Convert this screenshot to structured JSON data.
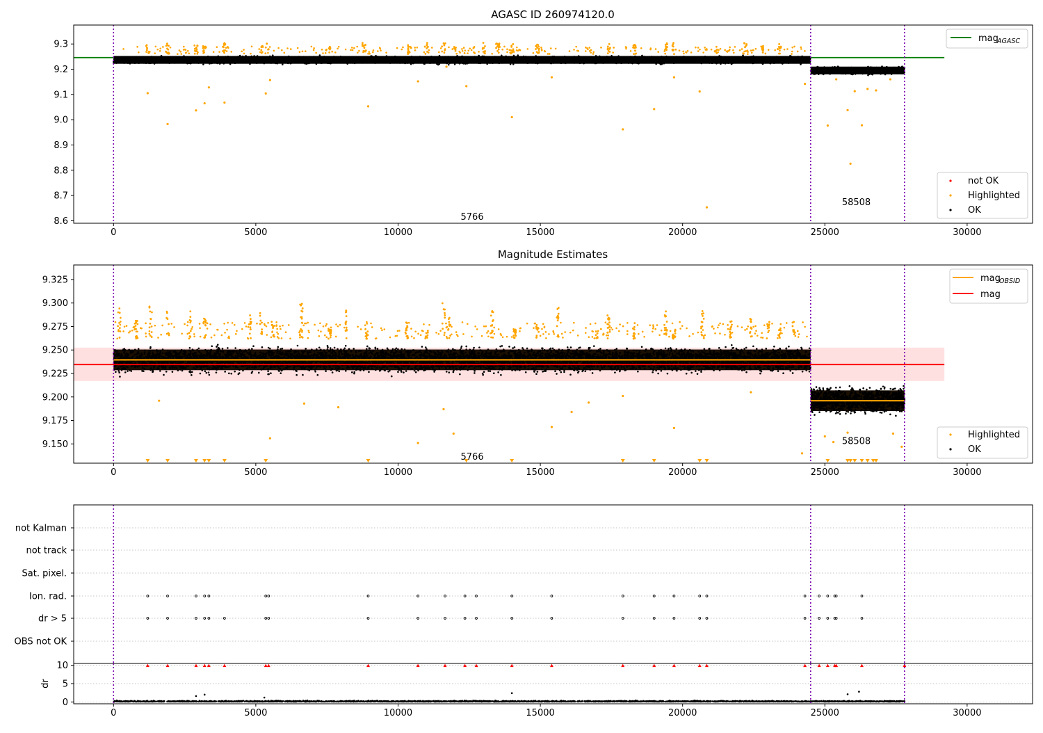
{
  "chart_data": [
    {
      "type": "scatter",
      "title": "AGASC ID 260974120.0",
      "xlim": [
        -1400,
        32300
      ],
      "ylim": [
        8.59,
        9.375
      ],
      "yticks": [
        "9.3",
        "9.2",
        "9.1",
        "9.0",
        "8.9",
        "8.8",
        "8.7",
        "8.6"
      ],
      "xticks": [
        "0",
        "5000",
        "10000",
        "15000",
        "20000",
        "25000",
        "30000"
      ],
      "obsid_boundaries": [
        0,
        24500,
        27800
      ],
      "obsid_labels": [
        {
          "text": "5766",
          "x": 12200,
          "y": 8.615
        },
        {
          "text": "58508",
          "x": 25600,
          "y": 8.672
        }
      ],
      "mag_agasc": {
        "value": 9.246,
        "x_range": [
          -1400,
          29200
        ]
      },
      "ok_bands": [
        {
          "x": [
            0,
            24500
          ],
          "center": 9.237,
          "spread": 0.022
        },
        {
          "x": [
            24500,
            27800
          ],
          "center": 9.195,
          "spread": 0.022
        }
      ],
      "highlighted_points": [
        [
          1200,
          9.105
        ],
        [
          1900,
          8.983
        ],
        [
          2900,
          9.037
        ],
        [
          3200,
          9.065
        ],
        [
          3350,
          9.128
        ],
        [
          3900,
          9.068
        ],
        [
          5350,
          9.104
        ],
        [
          5500,
          9.157
        ],
        [
          8950,
          9.053
        ],
        [
          10700,
          9.152
        ],
        [
          11700,
          9.21
        ],
        [
          12400,
          9.133
        ],
        [
          14000,
          9.01
        ],
        [
          15400,
          9.168
        ],
        [
          17900,
          8.962
        ],
        [
          19000,
          9.042
        ],
        [
          19700,
          9.168
        ],
        [
          20600,
          9.112
        ],
        [
          20850,
          8.653
        ],
        [
          24300,
          9.142
        ],
        [
          25100,
          8.977
        ],
        [
          25400,
          9.16
        ],
        [
          25800,
          9.038
        ],
        [
          25900,
          8.826
        ],
        [
          26050,
          9.113
        ],
        [
          26300,
          8.978
        ],
        [
          26500,
          9.122
        ],
        [
          26800,
          9.116
        ],
        [
          27300,
          9.16
        ]
      ],
      "highlighted_spikes": [
        1200,
        1900,
        2900,
        3200,
        3900,
        5200,
        5400,
        7600,
        8800,
        10400,
        11000,
        11600,
        12000,
        13000,
        13500,
        14000,
        14900,
        17400,
        18300,
        19400,
        19700,
        21200,
        22200,
        22800,
        23400
      ],
      "legend": {
        "lines": [
          {
            "label": "mag",
            "subscript": "AGASC",
            "color": "#008000"
          }
        ],
        "markers": [
          {
            "label": "not OK",
            "color": "#ff0000"
          },
          {
            "label": "Highlighted",
            "color": "#ffa500"
          },
          {
            "label": "OK",
            "color": "#000000"
          }
        ]
      }
    },
    {
      "type": "scatter",
      "title": "Magnitude Estimates",
      "xlim": [
        -1400,
        32300
      ],
      "ylim": [
        9.1295,
        9.3405
      ],
      "yticks": [
        "9.325",
        "9.300",
        "9.275",
        "9.250",
        "9.225",
        "9.200",
        "9.175",
        "9.150"
      ],
      "xticks": [
        "0",
        "5000",
        "10000",
        "15000",
        "20000",
        "25000",
        "30000"
      ],
      "obsid_boundaries": [
        0,
        24500,
        27800
      ],
      "obsid_labels": [
        {
          "text": "5766",
          "x": 12200,
          "y": 9.136
        },
        {
          "text": "58508",
          "x": 25600,
          "y": 9.153
        }
      ],
      "mag": {
        "value": 9.2345,
        "x_range": [
          -1400,
          29200
        ],
        "band": [
          9.217,
          9.2525
        ],
        "color": "#ff0000"
      },
      "mag_obsid": [
        {
          "x": [
            0,
            24500
          ],
          "value": 9.2395
        },
        {
          "x": [
            24500,
            27800
          ],
          "value": 9.196
        }
      ],
      "ok_bands": [
        {
          "x": [
            0,
            24500
          ],
          "center": 9.2395,
          "spread": 0.02
        },
        {
          "x": [
            24500,
            27800
          ],
          "center": 9.196,
          "spread": 0.02
        }
      ],
      "highlighted_points": [
        [
          1600,
          9.196
        ],
        [
          5500,
          9.156
        ],
        [
          6700,
          9.193
        ],
        [
          7900,
          9.189
        ],
        [
          10700,
          9.151
        ],
        [
          11600,
          9.187
        ],
        [
          11950,
          9.161
        ],
        [
          15400,
          9.168
        ],
        [
          16100,
          9.184
        ],
        [
          16700,
          9.194
        ],
        [
          17900,
          9.201
        ],
        [
          19700,
          9.167
        ],
        [
          22400,
          9.205
        ],
        [
          24200,
          9.14
        ],
        [
          25000,
          9.158
        ],
        [
          25300,
          9.152
        ],
        [
          25800,
          9.162
        ],
        [
          27400,
          9.161
        ],
        [
          27700,
          9.147
        ]
      ],
      "highlighted_spikes": [
        200,
        800,
        1300,
        1900,
        2700,
        3200,
        4800,
        5200,
        5600,
        6600,
        7600,
        8200,
        8900,
        10300,
        11000,
        11600,
        11800,
        13300,
        14100,
        14900,
        15600,
        17000,
        17400,
        18300,
        19400,
        19700,
        20700,
        21700,
        22400,
        23000,
        23400,
        23900
      ],
      "offscale_triangles": [
        1200,
        1900,
        2900,
        3200,
        3350,
        3900,
        5350,
        8950,
        12400,
        14000,
        17900,
        19000,
        20600,
        20850,
        25100,
        25800,
        25900,
        26050,
        26300,
        26500,
        26700,
        26800
      ],
      "legend": {
        "lines": [
          {
            "label": "mag",
            "subscript": "OBSID",
            "color": "#ffa500"
          },
          {
            "label": "mag",
            "subscript": "",
            "color": "#ff0000"
          }
        ],
        "markers": [
          {
            "label": "Highlighted",
            "color": "#ffa500"
          },
          {
            "label": "OK",
            "color": "#000000"
          }
        ]
      }
    },
    {
      "type": "scatter",
      "title": "",
      "xlim": [
        -1400,
        32300
      ],
      "flag_rows": [
        "not Kalman",
        "not track",
        "Sat. pixel.",
        "Ion. rad.",
        "dr > 5",
        "OBS not OK"
      ],
      "flag_points": {
        "Ion. rad.": [
          1200,
          1900,
          2900,
          3200,
          3350,
          5350,
          5450,
          8950,
          10700,
          11650,
          12350,
          12750,
          14000,
          15400,
          17900,
          19000,
          19700,
          20600,
          20850,
          24300,
          24800,
          25100,
          25350,
          25400,
          26300
        ],
        "dr > 5": [
          1200,
          1900,
          2900,
          3200,
          3350,
          3900,
          5350,
          5450,
          8950,
          10700,
          11650,
          12350,
          12750,
          14000,
          15400,
          17900,
          19000,
          19700,
          20600,
          20850,
          24300,
          24800,
          25100,
          25350,
          25400,
          26300
        ]
      },
      "dr_panel": {
        "ylabel": "dr",
        "yticks": [
          "10",
          "5",
          "0"
        ],
        "ylim": [
          -0.5,
          10.5
        ],
        "clipped_points": [
          1200,
          1900,
          2900,
          3200,
          3350,
          3900,
          5350,
          5450,
          8950,
          10700,
          11650,
          12350,
          12750,
          14000,
          15400,
          17900,
          19000,
          19700,
          20600,
          20850,
          24300,
          24800,
          25100,
          25350,
          25400,
          26300,
          27800
        ],
        "outliers": [
          [
            2900,
            1.6
          ],
          [
            3200,
            2.0
          ],
          [
            14000,
            2.4
          ],
          [
            25800,
            2.1
          ],
          [
            26200,
            2.8
          ],
          [
            5300,
            1.2
          ]
        ]
      },
      "xticks": [
        "0",
        "5000",
        "10000",
        "15000",
        "20000",
        "25000",
        "30000"
      ],
      "obsid_boundaries": [
        0,
        24500,
        27800
      ]
    }
  ]
}
